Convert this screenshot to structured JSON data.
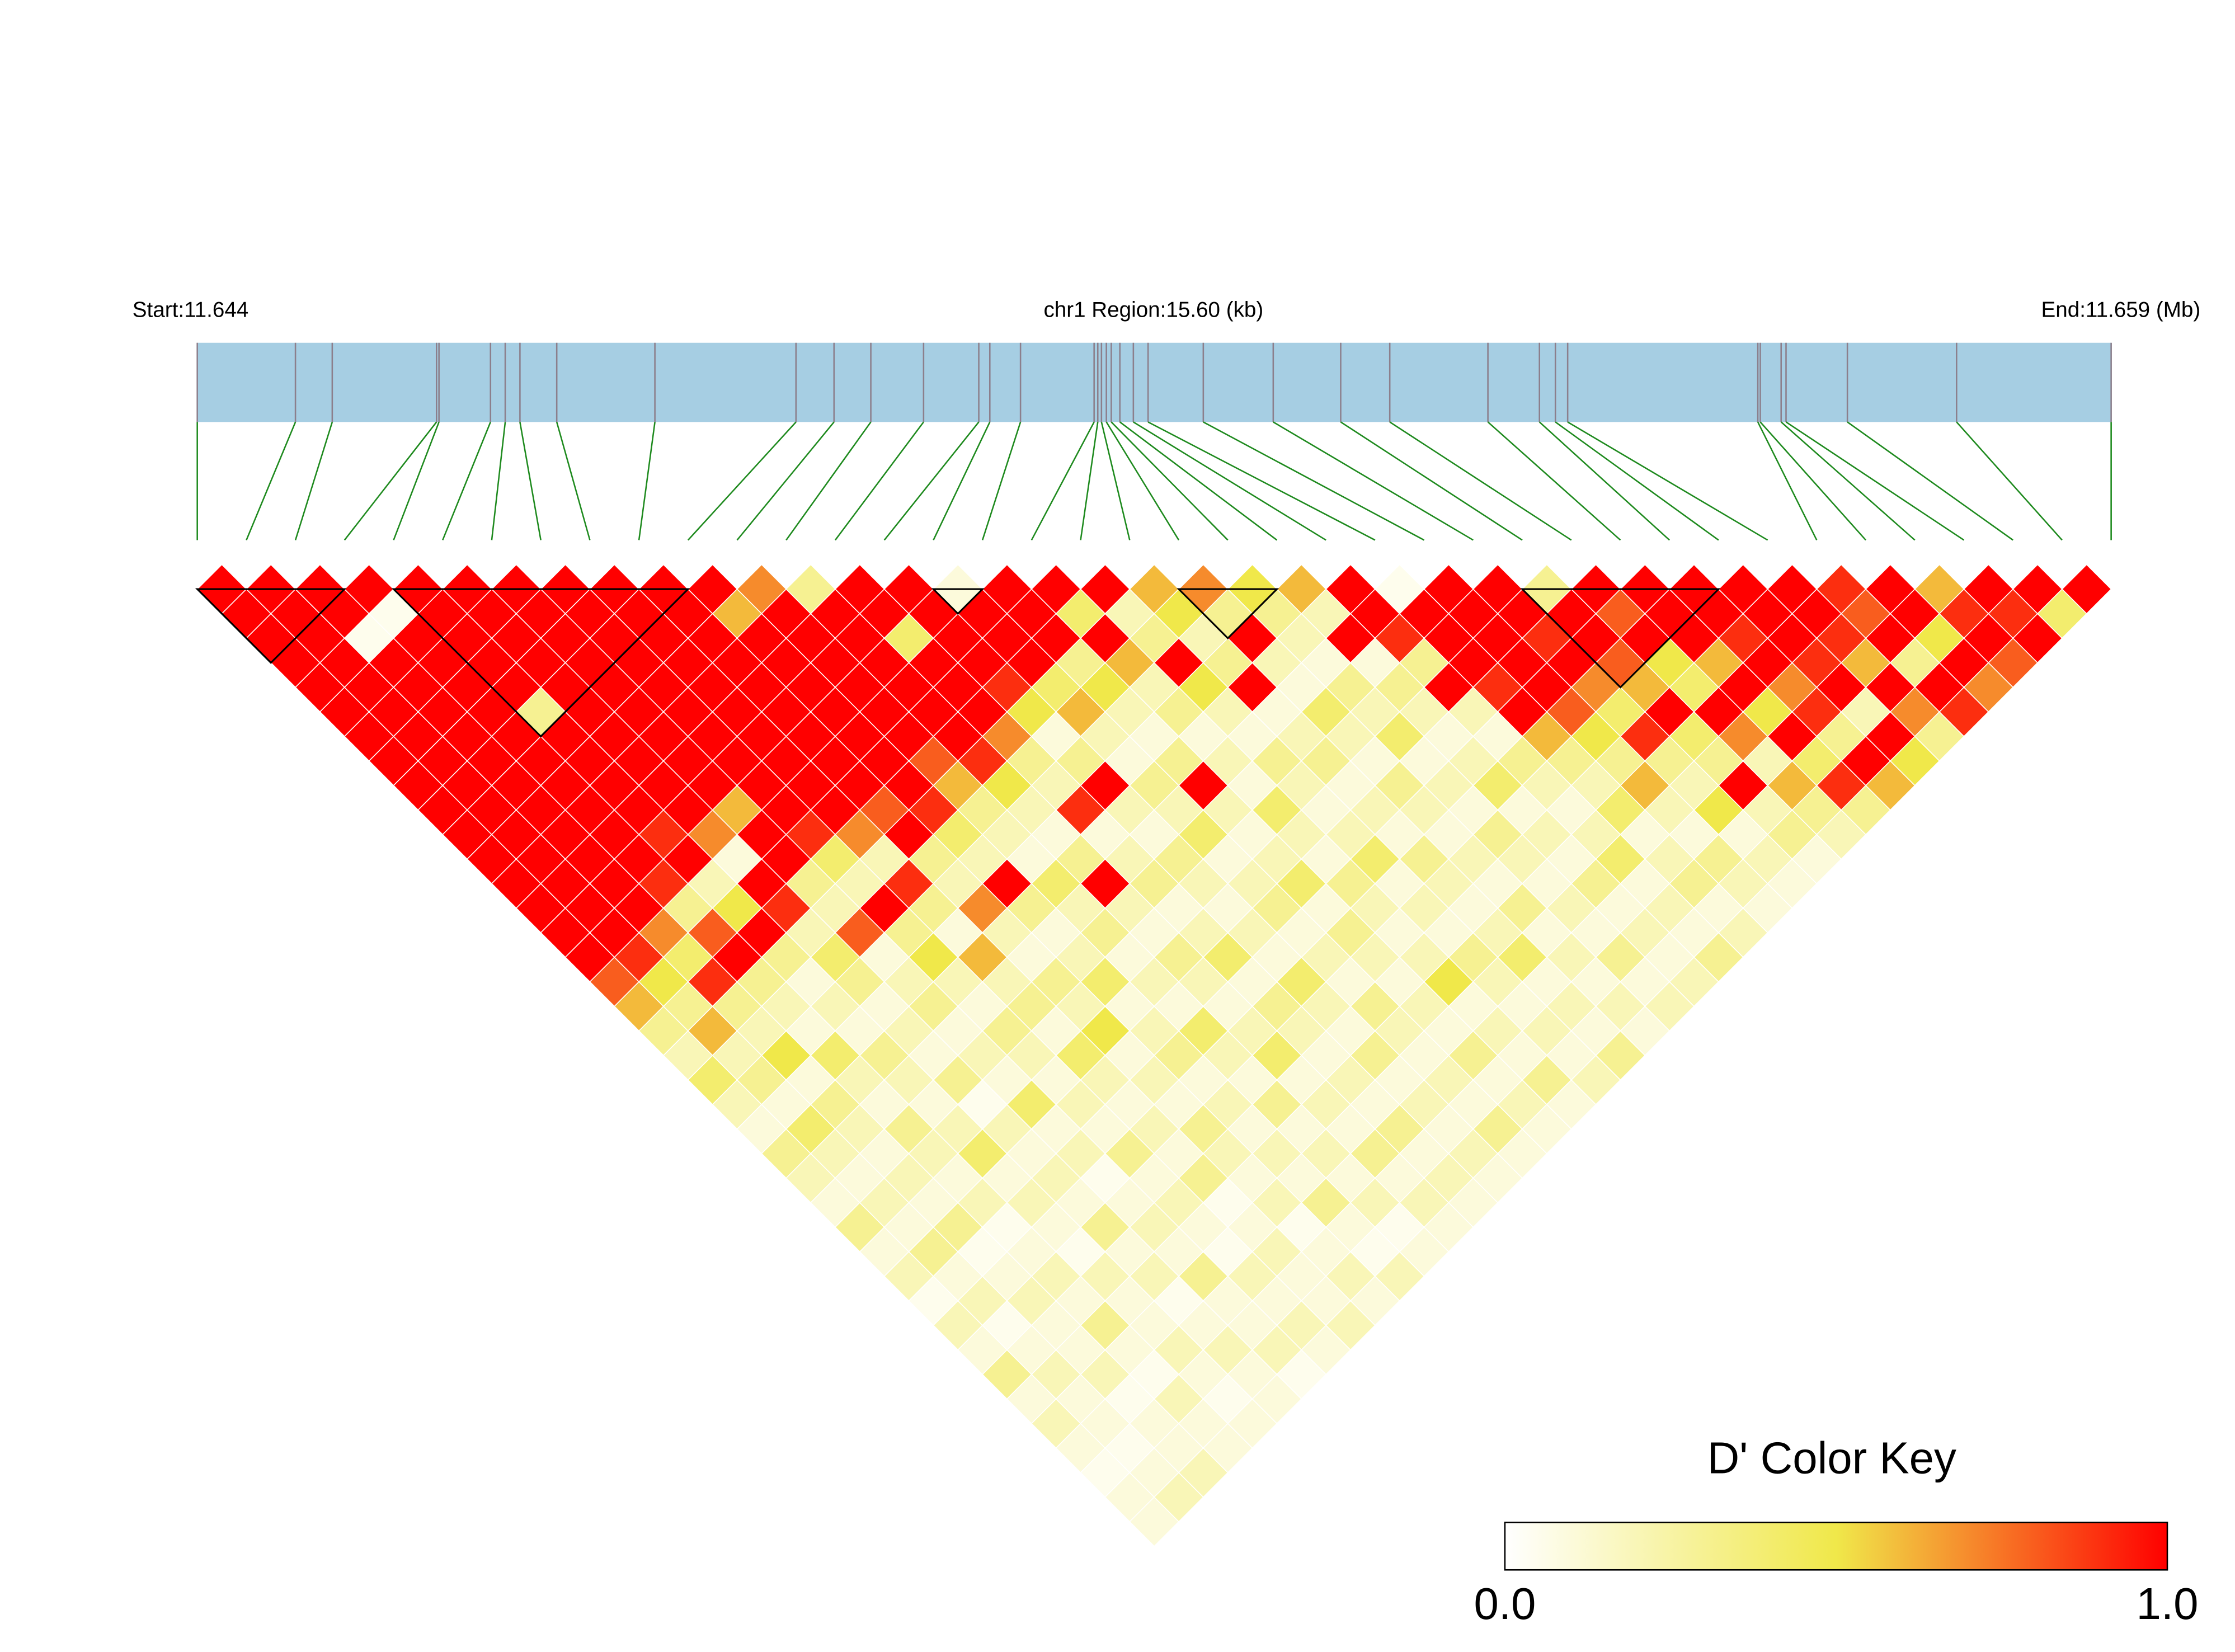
{
  "chart_data": {
    "type": "ld_heatmap",
    "start_label": "Start:11.644",
    "region_label": "chr1 Region:15.60 (kb)",
    "end_label": "End:11.659 (Mb)",
    "xlim": [
      0,
      15.6
    ],
    "snp_positions": [
      0,
      0.8,
      1.1,
      1.95,
      1.97,
      2.39,
      2.51,
      2.63,
      2.93,
      3.73,
      4.88,
      5.19,
      5.49,
      5.92,
      6.37,
      6.46,
      6.71,
      7.31,
      7.34,
      7.37,
      7.41,
      7.45,
      7.52,
      7.63,
      7.75,
      8.2,
      8.77,
      9.32,
      9.72,
      10.52,
      10.94,
      11.07,
      11.17,
      12.72,
      12.74,
      12.91,
      12.95,
      13.45,
      14.34,
      15.6
    ],
    "matrix": [
      [
        1,
        1,
        1,
        1,
        1,
        1,
        1,
        1,
        1,
        1,
        1,
        1,
        1,
        1,
        1,
        1,
        0.8,
        0.6,
        0.3,
        0.2,
        0.4,
        0.2,
        0.1,
        0.3,
        0.2,
        0.1,
        0.3,
        0.1,
        0.2,
        0.05,
        0.2,
        0.1,
        0.3,
        0.1,
        0.2,
        0.1,
        0.05,
        0.1,
        0.1
      ],
      [
        1,
        1,
        1,
        1,
        1,
        1,
        1,
        1,
        1,
        1,
        1,
        1,
        1,
        1,
        1,
        0.9,
        0.5,
        0.3,
        0.6,
        0.2,
        0.3,
        0.1,
        0.4,
        0.2,
        0.1,
        0.2,
        0.1,
        0.3,
        0.1,
        0.2,
        0.05,
        0.1,
        0.2,
        0.1,
        0.1,
        0.05,
        0.1,
        0.2
      ],
      [
        1,
        1,
        0.05,
        1,
        1,
        1,
        1,
        1,
        1,
        1,
        1,
        1,
        1,
        1,
        0.7,
        0.4,
        0.9,
        0.3,
        0.2,
        0.5,
        0.1,
        0.3,
        0.2,
        0.1,
        0.2,
        0.1,
        0.3,
        0.05,
        0.1,
        0.2,
        0.1,
        0.1,
        0.2,
        0.05,
        0.1,
        0.1,
        0.2
      ],
      [
        1,
        0.05,
        1,
        1,
        1,
        1,
        1,
        1,
        1,
        1,
        1,
        1,
        0.9,
        0.3,
        0.8,
        1,
        0.3,
        0.2,
        0.1,
        0.4,
        0.2,
        0.1,
        0.3,
        0.2,
        0.1,
        0.2,
        0.05,
        0.1,
        0.2,
        0.1,
        0.3,
        0.1,
        0.05,
        0.2,
        0.1,
        0.1
      ],
      [
        1,
        1,
        1,
        1,
        1,
        0.3,
        1,
        1,
        1,
        1,
        0.9,
        1,
        0.2,
        0.5,
        1,
        0.3,
        0.1,
        0.2,
        0.1,
        0.3,
        0.2,
        0.1,
        0.2,
        0.4,
        0.1,
        0.2,
        0.1,
        0.05,
        0.2,
        0.1,
        0.1,
        0.2,
        0.1,
        0.05,
        0.1
      ],
      [
        1,
        1,
        1,
        1,
        1,
        1,
        1,
        1,
        1,
        1,
        0.7,
        0.1,
        1,
        0.9,
        0.2,
        0.4,
        0.3,
        0.1,
        0.2,
        0.1,
        0.3,
        0.05,
        0.2,
        0.1,
        0.2,
        0.1,
        0.3,
        0.1,
        0.2,
        0.05,
        0.1,
        0.2,
        0.1,
        0.1
      ],
      [
        1,
        1,
        1,
        1,
        1,
        1,
        1,
        1,
        1,
        0.6,
        1,
        1,
        0.3,
        0.2,
        0.8,
        0.1,
        0.2,
        0.3,
        0.1,
        0.2,
        0.1,
        0.4,
        0.1,
        0.2,
        0.05,
        0.1,
        0.2,
        0.1,
        0.3,
        0.1,
        0.1,
        0.2,
        0.05
      ],
      [
        1,
        1,
        1,
        1,
        1,
        1,
        1,
        1,
        1,
        1,
        0.9,
        0.4,
        0.2,
        1,
        0.3,
        0.5,
        0.2,
        0.1,
        0.3,
        0.2,
        0.1,
        0.2,
        0.1,
        0.3,
        0.1,
        0.2,
        0.1,
        0.05,
        0.2,
        0.1,
        0.2,
        0.1
      ],
      [
        1,
        1,
        1,
        1,
        1,
        1,
        1,
        1,
        1,
        1,
        0.7,
        0.2,
        0.9,
        0.3,
        0.1,
        0.6,
        0.2,
        0.3,
        0.1,
        0.4,
        0.2,
        0.1,
        0.2,
        0.1,
        0.3,
        0.05,
        0.1,
        0.2,
        0.1,
        0.1,
        0.2
      ],
      [
        1,
        1,
        1,
        1,
        1,
        1,
        1,
        1,
        1,
        0.8,
        1,
        0.3,
        0.2,
        0.7,
        0.2,
        0.1,
        0.3,
        0.2,
        0.5,
        0.1,
        0.2,
        0.1,
        0.3,
        0.2,
        0.1,
        0.2,
        0.05,
        0.1,
        0.2,
        0.1
      ],
      [
        1,
        0.6,
        1,
        1,
        1,
        1,
        1,
        1,
        1,
        0.9,
        0.4,
        0.2,
        1,
        0.3,
        0.1,
        0.2,
        0.4,
        0.1,
        0.2,
        0.3,
        0.1,
        0.2,
        0.1,
        0.2,
        0.1,
        0.3,
        0.1,
        0.05,
        0.2
      ],
      [
        0.7,
        1,
        1,
        1,
        1,
        1,
        1,
        0.8,
        0.6,
        0.3,
        0.2,
        0.1,
        0.4,
        0.2,
        0.3,
        0.1,
        0.2,
        0.1,
        0.4,
        0.2,
        0.1,
        0.3,
        0.1,
        0.2,
        0.1,
        0.2,
        0.05,
        0.1
      ],
      [
        0.3,
        1,
        1,
        1,
        1,
        1,
        1,
        0.9,
        0.5,
        0.2,
        0.1,
        0.3,
        1,
        0.2,
        0.1,
        0.3,
        0.2,
        0.1,
        0.2,
        0.4,
        0.1,
        0.2,
        0.1,
        0.3,
        0.1,
        0.2,
        0.1
      ],
      [
        1,
        1,
        0.4,
        1,
        1,
        1,
        0.7,
        0.3,
        0.2,
        0.9,
        0.1,
        0.2,
        0.3,
        0.1,
        0.2,
        0.4,
        0.1,
        0.3,
        0.2,
        0.1,
        0.2,
        0.1,
        0.3,
        0.1,
        0.2,
        0.1
      ],
      [
        1,
        1,
        1,
        1,
        0.9,
        0.5,
        0.1,
        0.3,
        1,
        0.2,
        0.1,
        0.3,
        0.2,
        0.1,
        0.2,
        0.1,
        0.4,
        0.2,
        0.1,
        0.3,
        0.1,
        0.2,
        0.1,
        0.2,
        0.1
      ],
      [
        0.1,
        1,
        1,
        1,
        0.4,
        0.6,
        0.2,
        0.1,
        0.3,
        0.2,
        0.4,
        0.1,
        0.2,
        0.3,
        0.1,
        0.2,
        0.1,
        0.3,
        0.2,
        0.1,
        0.2,
        0.1,
        0.3,
        0.1
      ],
      [
        1,
        1,
        1,
        0.3,
        0.5,
        0.2,
        0.1,
        0.3,
        1,
        0.2,
        0.1,
        0.2,
        0.4,
        0.1,
        0.3,
        0.2,
        0.1,
        0.2,
        0.1,
        0.3,
        0.1,
        0.2,
        0.1
      ],
      [
        1,
        0.4,
        1,
        0.6,
        0.2,
        0.3,
        0.1,
        0.2,
        0.1,
        0.4,
        0.2,
        0.1,
        0.3,
        0.2,
        0.1,
        0.2,
        0.5,
        0.1,
        0.2,
        0.1,
        0.3,
        0.1
      ],
      [
        1,
        0.2,
        0.3,
        1,
        0.5,
        0.2,
        0.1,
        0.3,
        0.2,
        0.1,
        0.2,
        0.4,
        0.1,
        0.2,
        0.1,
        0.3,
        0.2,
        0.1,
        0.2,
        0.1,
        0.2
      ],
      [
        0.6,
        0.5,
        0.2,
        0.3,
        1,
        0.1,
        0.2,
        0.3,
        0.1,
        0.2,
        0.1,
        0.3,
        0.2,
        0.1,
        0.2,
        0.4,
        0.1,
        0.2,
        0.1,
        0.3
      ],
      [
        0.7,
        0.3,
        1,
        0.2,
        0.1,
        0.4,
        0.2,
        0.1,
        0.3,
        0.2,
        0.1,
        0.2,
        0.1,
        0.3,
        0.1,
        0.2,
        0.1,
        0.2,
        0.1
      ],
      [
        0.5,
        0.3,
        0.2,
        0.1,
        0.3,
        0.2,
        0.4,
        0.1,
        0.2,
        0.1,
        0.3,
        0.2,
        0.1,
        0.2,
        0.1,
        0.3,
        0.1,
        0.2
      ],
      [
        0.6,
        0.2,
        1,
        0.1,
        0.3,
        0.2,
        0.1,
        0.2,
        0.4,
        0.1,
        0.2,
        0.1,
        0.3,
        0.1,
        0.2,
        0.1,
        0.2
      ],
      [
        1,
        1,
        0.9,
        0.3,
        1,
        0.2,
        0.1,
        0.3,
        0.2,
        0.1,
        0.2,
        0.4,
        0.1,
        0.2,
        0.1,
        0.3
      ],
      [
        0.05,
        1,
        1,
        1,
        0.9,
        1,
        0.6,
        0.3,
        0.2,
        0.4,
        0.1,
        0.2,
        0.3,
        0.1,
        0.2
      ],
      [
        1,
        1,
        1,
        1,
        1,
        0.8,
        0.5,
        0.3,
        0.6,
        0.2,
        0.1,
        0.3,
        0.2,
        0.1
      ],
      [
        1,
        1,
        0.9,
        1,
        0.7,
        0.4,
        0.9,
        0.3,
        0.2,
        0.5,
        0.1,
        0.2,
        0.1
      ],
      [
        0.3,
        1,
        1,
        0.8,
        0.6,
        1,
        0.4,
        0.3,
        1,
        0.2,
        0.3,
        0.1
      ],
      [
        1,
        0.8,
        1,
        0.5,
        0.4,
        1,
        0.7,
        0.2,
        0.6,
        0.3,
        0.2
      ],
      [
        1,
        1,
        1,
        0.6,
        1,
        0.5,
        1,
        0.4,
        0.9,
        0.3
      ],
      [
        1,
        1,
        0.9,
        1,
        0.7,
        0.9,
        0.3,
        1,
        0.6
      ],
      [
        1,
        1,
        1,
        0.9,
        1,
        0.2,
        1,
        0.5
      ],
      [
        1,
        1,
        0.9,
        0.6,
        1,
        0.7,
        0.3
      ],
      [
        0.9,
        0.8,
        1,
        0.3,
        1,
        0.9
      ],
      [
        1,
        1,
        0.5,
        1,
        0.7
      ],
      [
        0.6,
        0.9,
        1,
        0.8
      ],
      [
        1,
        0.9,
        1
      ],
      [
        1,
        0.4
      ],
      [
        1
      ]
    ],
    "blocks": [
      [
        0,
        3
      ],
      [
        4,
        10
      ],
      [
        15,
        16
      ],
      [
        20,
        22
      ],
      [
        27,
        31
      ]
    ],
    "bar_color": "#a6cee3",
    "snp_color": "#8c7f8c",
    "connector_color": "#1e8a1e",
    "colorbar": {
      "title": "D' Color Key",
      "colors": [
        "#ffffff",
        "#f0e84a",
        "#ff0000"
      ],
      "lim": [
        0,
        1
      ],
      "ticks": [
        {
          "value": 0,
          "label": "0.0"
        },
        {
          "value": 1,
          "label": "1.0"
        }
      ]
    }
  }
}
